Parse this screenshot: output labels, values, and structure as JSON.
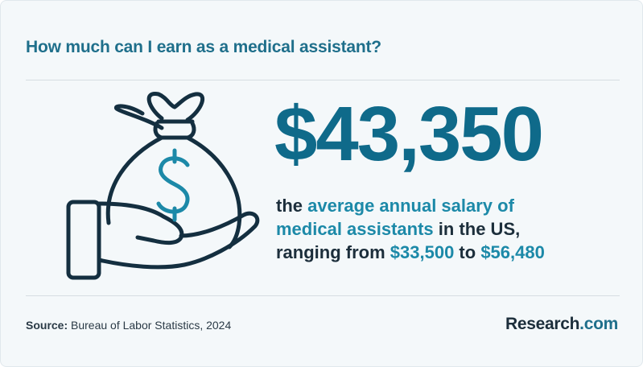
{
  "header": {
    "title": "How much can I earn as a medical assistant?"
  },
  "stat": {
    "value": "$43,350",
    "line1_start": "the ",
    "line1_highlight": "average annual salary of",
    "line2_highlight": "medical assistants",
    "line2_end": " in the US,",
    "line3_start": "ranging from ",
    "range_low": "$33,500",
    "line3_mid": " to ",
    "range_high": "$56,480"
  },
  "footer": {
    "source_label": "Source:",
    "source_text": " Bureau of Labor Statistics, 2024",
    "brand_name": "Research",
    "brand_suffix": ".com"
  },
  "icons": {
    "illustration": "money-bag-in-hand-icon"
  },
  "colors": {
    "title": "#1f6f8b",
    "big_number": "#0f6a8a",
    "highlight": "#1c89a8",
    "text": "#1c2e3b",
    "background": "#f4f8fa"
  }
}
